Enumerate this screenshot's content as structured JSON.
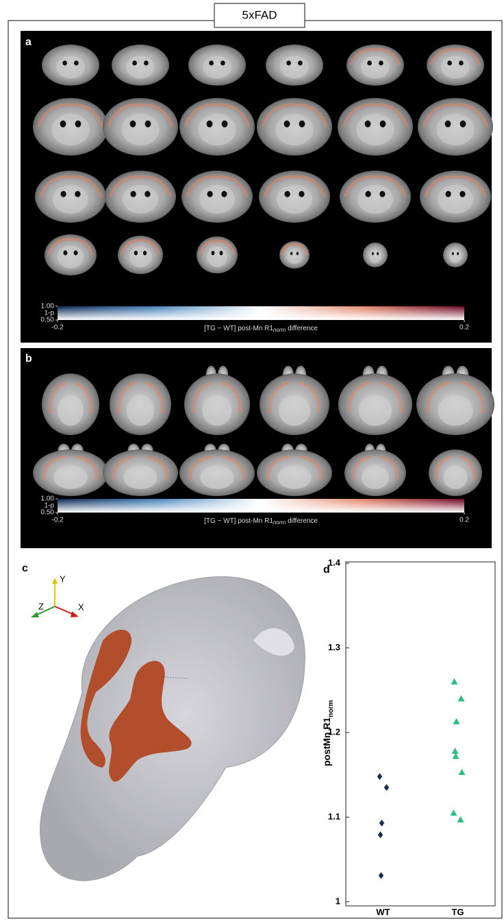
{
  "title": "5xFAD",
  "panels": [
    {
      "label": "a",
      "colorbar": {
        "xlim": [
          -0.2,
          0.2
        ],
        "xticks": [
          -0.2,
          0.2
        ],
        "ylim": [
          0.5,
          1
        ],
        "yticks": [
          {
            "value": 1,
            "label": "1.00"
          },
          {
            "value": 0.5,
            "label": "0.50"
          }
        ],
        "ylabel": "1-p",
        "xlabel": "[TG − WT] post-Mn R1",
        "xlabel_sub": "norm",
        "xlabel_tail": "difference"
      }
    },
    {
      "label": "b",
      "colorbar": {
        "xlim": [
          -0.2,
          0.2
        ],
        "xticks": [
          -0.2,
          0.2
        ],
        "ylim": [
          0.5,
          1
        ],
        "yticks": [
          {
            "value": 1,
            "label": "1.00"
          },
          {
            "value": 0.5,
            "label": "0.50"
          }
        ],
        "ylabel": "1-p",
        "xlabel": "[TG − WT] post-Mn R1",
        "xlabel_sub": "norm",
        "xlabel_tail": "difference"
      }
    },
    {
      "label": "c",
      "axes": [
        "Y",
        "Z",
        "X"
      ]
    },
    {
      "label": "d"
    }
  ],
  "chart_data": {
    "type": "scatter",
    "categories": [
      "WT",
      "TG"
    ],
    "series": [
      {
        "color": "#1b2d4d",
        "marker": "diamond",
        "values": [
          1.148,
          1.135,
          1.093,
          1.079,
          1.031
        ]
      },
      {
        "color": "#2dbd7e",
        "marker": "triangle",
        "values": [
          1.26,
          1.24,
          1.213,
          1.178,
          1.172,
          1.153,
          1.105,
          1.097
        ]
      }
    ],
    "ylim": [
      1,
      1.4
    ],
    "yticks": [
      1,
      1.1,
      1.2,
      1.3,
      1.4
    ],
    "ylabel": "postMn R1",
    "ylabel_sub": "norm"
  }
}
